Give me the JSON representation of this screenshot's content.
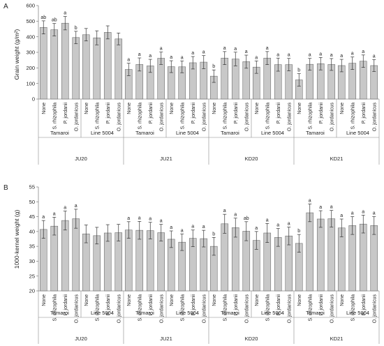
{
  "chart_data": [
    {
      "type": "bar",
      "panel_label": "A",
      "ylabel": "Grain weight (g/m²)",
      "ylim": [
        0,
        600
      ],
      "yticks": [
        0,
        100,
        200,
        300,
        400,
        500,
        600
      ],
      "grid": false,
      "error_bars": true,
      "categories": [
        "None",
        "S. rhizophila",
        "P. jordanii",
        "O. jordanicus"
      ],
      "groups": [
        {
          "site": "JU20",
          "variety": "Tamaroi",
          "values": [
            460,
            445,
            487,
            395
          ],
          "errors": [
            42,
            40,
            43,
            40
          ],
          "letters": [
            "ab",
            "ab",
            "a",
            "b"
          ]
        },
        {
          "site": "JU20",
          "variety": "Line 5004",
          "values": [
            413,
            393,
            428,
            386
          ],
          "errors": [
            40,
            45,
            42,
            38
          ],
          "letters": [
            "",
            "",
            "",
            ""
          ]
        },
        {
          "site": "JU21",
          "variety": "Tamaroi",
          "values": [
            190,
            222,
            213,
            262
          ],
          "errors": [
            40,
            42,
            42,
            40
          ],
          "letters": [
            "a",
            "a",
            "a",
            "a"
          ]
        },
        {
          "site": "JU21",
          "variety": "Line 5004",
          "values": [
            208,
            207,
            233,
            237
          ],
          "errors": [
            38,
            38,
            40,
            42
          ],
          "letters": [
            "a",
            "a",
            "a",
            "a"
          ]
        },
        {
          "site": "KD20",
          "variety": "Tamaroi",
          "values": [
            147,
            263,
            257,
            240
          ],
          "errors": [
            40,
            42,
            44,
            42
          ],
          "letters": [
            "b",
            "a",
            "a",
            "a"
          ]
        },
        {
          "site": "KD20",
          "variety": "Line 5004",
          "values": [
            205,
            263,
            221,
            221
          ],
          "errors": [
            40,
            42,
            42,
            40
          ],
          "letters": [
            "a",
            "a",
            "a",
            "a"
          ]
        },
        {
          "site": "KD21",
          "variety": "Tamaroi",
          "values": [
            123,
            223,
            227,
            222
          ],
          "errors": [
            40,
            38,
            40,
            38
          ],
          "letters": [
            "b",
            "a",
            "a",
            "a"
          ]
        },
        {
          "site": "KD21",
          "variety": "Line 5004",
          "values": [
            215,
            230,
            243,
            215
          ],
          "errors": [
            40,
            40,
            40,
            38
          ],
          "letters": [
            "a",
            "a",
            "a",
            "a"
          ]
        }
      ]
    },
    {
      "type": "bar",
      "panel_label": "B",
      "ylabel": "1000-kernel weight (g)",
      "ylim": [
        20,
        55
      ],
      "yticks": [
        20,
        25,
        30,
        35,
        40,
        45,
        50,
        55
      ],
      "grid": false,
      "error_bars": true,
      "categories": [
        "None",
        "S. rhizophila",
        "P. jordanii",
        "O. jordanicus"
      ],
      "groups": [
        {
          "site": "JU20",
          "variety": "Tamaroi",
          "values": [
            40.7,
            41.8,
            43.7,
            44.3
          ],
          "errors": [
            3.0,
            3.0,
            3.2,
            3.2
          ],
          "letters": [
            "a",
            "a",
            "a",
            "a"
          ]
        },
        {
          "site": "JU20",
          "variety": "Line 5004",
          "values": [
            39.2,
            38.6,
            39.5,
            39.6
          ],
          "errors": [
            3.0,
            2.8,
            2.8,
            2.8
          ],
          "letters": [
            "",
            "",
            "",
            ""
          ]
        },
        {
          "site": "JU21",
          "variety": "Tamaroi",
          "values": [
            40.5,
            40.4,
            40.3,
            39.6
          ],
          "errors": [
            2.8,
            3.0,
            2.8,
            2.8
          ],
          "letters": [
            "a",
            "a",
            "a",
            "a"
          ]
        },
        {
          "site": "JU21",
          "variety": "Line 5004",
          "values": [
            37.4,
            36.4,
            37.7,
            37.6
          ],
          "errors": [
            2.8,
            2.8,
            2.8,
            2.8
          ],
          "letters": [
            "a",
            "a",
            "a",
            "a"
          ]
        },
        {
          "site": "KD20",
          "variety": "Tamaroi",
          "values": [
            35.0,
            42.6,
            41.3,
            40.1
          ],
          "errors": [
            3.0,
            3.2,
            3.2,
            3.2
          ],
          "letters": [
            "b",
            "a",
            "a",
            "ab"
          ]
        },
        {
          "site": "KD20",
          "variety": "Line 5004",
          "values": [
            37.0,
            39.5,
            38.0,
            38.5
          ],
          "errors": [
            3.0,
            3.2,
            3.0,
            3.0
          ],
          "letters": [
            "a",
            "a",
            "a",
            "a"
          ]
        },
        {
          "site": "KD21",
          "variety": "Tamaroi",
          "values": [
            36.0,
            46.3,
            44.2,
            44.3
          ],
          "errors": [
            3.0,
            3.0,
            2.8,
            2.8
          ],
          "letters": [
            "b",
            "a",
            "a",
            "a"
          ]
        },
        {
          "site": "KD21",
          "variety": "Line 5004",
          "values": [
            41.2,
            42.0,
            42.5,
            42.0
          ],
          "errors": [
            3.0,
            3.0,
            3.0,
            3.0
          ],
          "letters": [
            "a",
            "a",
            "a",
            "a"
          ]
        }
      ]
    }
  ]
}
